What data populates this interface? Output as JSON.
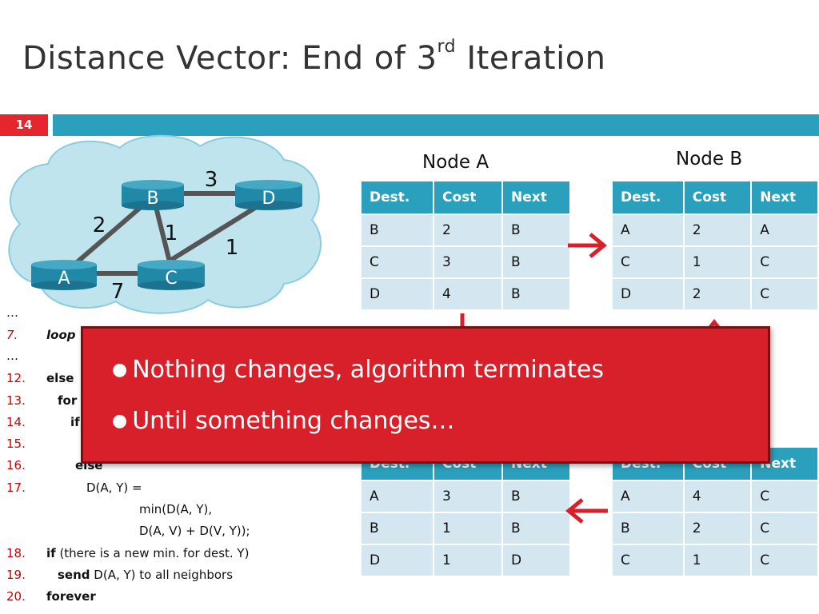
{
  "slide": {
    "title_main": "Distance Vector: End of 3",
    "title_sup": "rd",
    "title_end": " Iteration",
    "number": "14"
  },
  "network": {
    "nodes": [
      "A",
      "B",
      "C",
      "D"
    ],
    "edge_costs": {
      "A_B": "2",
      "B_C": "1",
      "B_D": "3",
      "C_D": "1",
      "A_C": "7"
    }
  },
  "tables": {
    "node_a": {
      "label": "Node A",
      "headers": [
        "Dest.",
        "Cost",
        "Next"
      ],
      "rows": [
        [
          "B",
          "2",
          "B"
        ],
        [
          "C",
          "3",
          "B"
        ],
        [
          "D",
          "4",
          "B"
        ]
      ]
    },
    "node_b": {
      "label": "Node B",
      "headers": [
        "Dest.",
        "Cost",
        "Next"
      ],
      "rows": [
        [
          "A",
          "2",
          "A"
        ],
        [
          "C",
          "1",
          "C"
        ],
        [
          "D",
          "2",
          "C"
        ]
      ]
    },
    "node_c": {
      "headers": [
        "Dest.",
        "Cost",
        "Next"
      ],
      "rows": [
        [
          "A",
          "3",
          "B"
        ],
        [
          "B",
          "1",
          "B"
        ],
        [
          "D",
          "1",
          "D"
        ]
      ]
    },
    "node_d": {
      "headers": [
        "Dest.",
        "Cost",
        "Next"
      ],
      "rows": [
        [
          "A",
          "4",
          "C"
        ],
        [
          "B",
          "2",
          "C"
        ],
        [
          "C",
          "1",
          "C"
        ]
      ]
    }
  },
  "code": {
    "dots": "…",
    "line7_num": "7.",
    "line7_text": "loop",
    "line12_num": "12.",
    "line12_text": "else",
    "line13_num": "13.",
    "line13_text": "for",
    "line14_num": "14.",
    "line14_text": "if",
    "line15_num": "15.",
    "line16_num": "16.",
    "line16_text": "else",
    "line17_num": "17.",
    "line17_text": "D(A, Y) =",
    "line17b_text": "min(D(A, Y),",
    "line17c_text": "D(A, V) + D(V, Y));",
    "line18_num": "18.",
    "line18_kw": "if",
    "line18_text": " (there is a new min. for dest. Y)",
    "line19_num": "19.",
    "line19_kw": "send",
    "line19_text": " D(A, Y) to all neighbors",
    "line20_num": "20.",
    "line20_text": "forever"
  },
  "overlay": {
    "bullets": [
      "Nothing changes, algorithm terminates",
      "Until something changes…"
    ]
  },
  "colors": {
    "accent_red": "#e5262d",
    "accent_teal": "#2aa0bd",
    "table_cell": "#d4e6ef",
    "cloud": "#bfe4ee",
    "router": "#2288a8"
  }
}
